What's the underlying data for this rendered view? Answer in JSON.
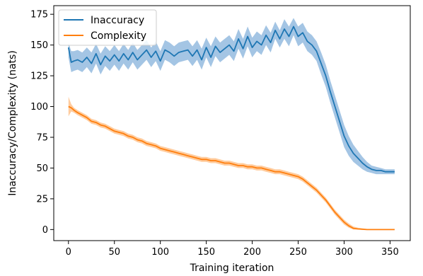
{
  "chart_data": {
    "type": "line",
    "xlabel": "Training iteration",
    "ylabel": "Inaccuracy/Complexity (nats)",
    "xlim": [
      -16,
      372
    ],
    "ylim": [
      -9,
      182
    ],
    "xticks": [
      0,
      50,
      100,
      150,
      200,
      250,
      300,
      350
    ],
    "yticks": [
      0,
      25,
      50,
      75,
      100,
      125,
      150,
      175
    ],
    "legend_position": "upper-left",
    "series": [
      {
        "name": "Inaccuracy",
        "color": "#1f77b4",
        "band_color": "#8db7dd",
        "x": [
          0,
          3,
          6,
          10,
          15,
          20,
          25,
          30,
          35,
          40,
          45,
          50,
          55,
          60,
          65,
          70,
          75,
          80,
          85,
          90,
          95,
          100,
          105,
          110,
          115,
          120,
          125,
          130,
          135,
          140,
          145,
          150,
          155,
          160,
          165,
          170,
          175,
          180,
          185,
          190,
          195,
          200,
          205,
          210,
          215,
          220,
          225,
          230,
          235,
          240,
          245,
          250,
          255,
          260,
          265,
          270,
          275,
          280,
          285,
          290,
          295,
          300,
          305,
          310,
          315,
          320,
          325,
          330,
          335,
          340,
          345,
          350,
          355
        ],
        "y": [
          148,
          136,
          137,
          138,
          136,
          140,
          135,
          143,
          134,
          141,
          137,
          142,
          137,
          143,
          138,
          144,
          138,
          142,
          146,
          140,
          145,
          137,
          146,
          144,
          141,
          144,
          145,
          146,
          141,
          146,
          138,
          148,
          140,
          149,
          144,
          147,
          150,
          145,
          155,
          147,
          157,
          148,
          153,
          150,
          158,
          152,
          162,
          155,
          163,
          157,
          165,
          157,
          160,
          153,
          150,
          145,
          135,
          125,
          112,
          100,
          88,
          76,
          68,
          62,
          58,
          54,
          51,
          49,
          48,
          48,
          47,
          47,
          47
        ],
        "upper": [
          152,
          145,
          145,
          146,
          144,
          148,
          144,
          151,
          143,
          149,
          145,
          150,
          145,
          151,
          146,
          152,
          146,
          150,
          154,
          148,
          153,
          145,
          154,
          152,
          149,
          152,
          153,
          154,
          149,
          154,
          147,
          156,
          149,
          157,
          152,
          155,
          158,
          153,
          163,
          155,
          165,
          156,
          161,
          158,
          166,
          160,
          169,
          162,
          171,
          165,
          172,
          165,
          168,
          161,
          158,
          153,
          144,
          134,
          121,
          109,
          97,
          85,
          76,
          69,
          64,
          59,
          55,
          52,
          51,
          50,
          49,
          49,
          49
        ],
        "lower": [
          140,
          128,
          129,
          130,
          128,
          132,
          127,
          135,
          126,
          133,
          129,
          134,
          129,
          135,
          130,
          136,
          130,
          134,
          138,
          132,
          137,
          129,
          138,
          136,
          133,
          136,
          137,
          138,
          133,
          138,
          130,
          140,
          132,
          141,
          136,
          139,
          142,
          137,
          147,
          139,
          149,
          140,
          145,
          142,
          150,
          144,
          155,
          148,
          155,
          149,
          158,
          149,
          152,
          145,
          142,
          137,
          126,
          116,
          103,
          91,
          79,
          67,
          60,
          55,
          52,
          49,
          47,
          46,
          45,
          45,
          45,
          45,
          45
        ]
      },
      {
        "name": "Complexity",
        "color": "#ff7f0e",
        "band_color": "#ffbf86",
        "x": [
          0,
          3,
          6,
          10,
          15,
          20,
          25,
          30,
          35,
          40,
          45,
          50,
          55,
          60,
          65,
          70,
          75,
          80,
          85,
          90,
          95,
          100,
          105,
          110,
          115,
          120,
          125,
          130,
          135,
          140,
          145,
          150,
          155,
          160,
          165,
          170,
          175,
          180,
          185,
          190,
          195,
          200,
          205,
          210,
          215,
          220,
          225,
          230,
          235,
          240,
          245,
          250,
          255,
          260,
          265,
          270,
          275,
          280,
          285,
          290,
          295,
          300,
          305,
          310,
          315,
          320,
          325,
          330,
          335,
          340,
          345,
          350,
          355
        ],
        "y": [
          100,
          99,
          97,
          95,
          93,
          91,
          88,
          87,
          85,
          84,
          82,
          80,
          79,
          78,
          76,
          75,
          73,
          72,
          70,
          69,
          68,
          66,
          65,
          64,
          63,
          62,
          61,
          60,
          59,
          58,
          57,
          57,
          56,
          56,
          55,
          54,
          54,
          53,
          52,
          52,
          51,
          51,
          50,
          50,
          49,
          48,
          47,
          47,
          46,
          45,
          44,
          43,
          41,
          38,
          35,
          32,
          28,
          24,
          19,
          14,
          10,
          6,
          3,
          1,
          0.5,
          0.2,
          0,
          0,
          0,
          0,
          0,
          0,
          0
        ],
        "upper": [
          108,
          102,
          99,
          97,
          95,
          93,
          90,
          89,
          87,
          86,
          84,
          82,
          81,
          80,
          78,
          77,
          75,
          74,
          72,
          71,
          70,
          68,
          67,
          66,
          65,
          64,
          63,
          62,
          61,
          60,
          59,
          59,
          58,
          58,
          57,
          56,
          56,
          55,
          54,
          54,
          53,
          53,
          52,
          52,
          51,
          50,
          49,
          49,
          48,
          47,
          46,
          45,
          43,
          40,
          37,
          34,
          30,
          26,
          21,
          16,
          12,
          8,
          5,
          2.5,
          1.5,
          1,
          0.5,
          0.5,
          0.5,
          0.5,
          0.5,
          0.5,
          0.5
        ],
        "lower": [
          92,
          96,
          95,
          93,
          91,
          89,
          86,
          85,
          83,
          82,
          80,
          78,
          77,
          76,
          74,
          73,
          71,
          70,
          68,
          67,
          66,
          64,
          63,
          62,
          61,
          60,
          59,
          58,
          57,
          56,
          55,
          55,
          54,
          54,
          53,
          52,
          52,
          51,
          50,
          50,
          49,
          49,
          48,
          48,
          47,
          46,
          45,
          45,
          44,
          43,
          42,
          41,
          39,
          36,
          33,
          30,
          26,
          22,
          17,
          12,
          8,
          4,
          1.5,
          0,
          0,
          0,
          0,
          0,
          0,
          0,
          0,
          0,
          0
        ]
      }
    ]
  }
}
